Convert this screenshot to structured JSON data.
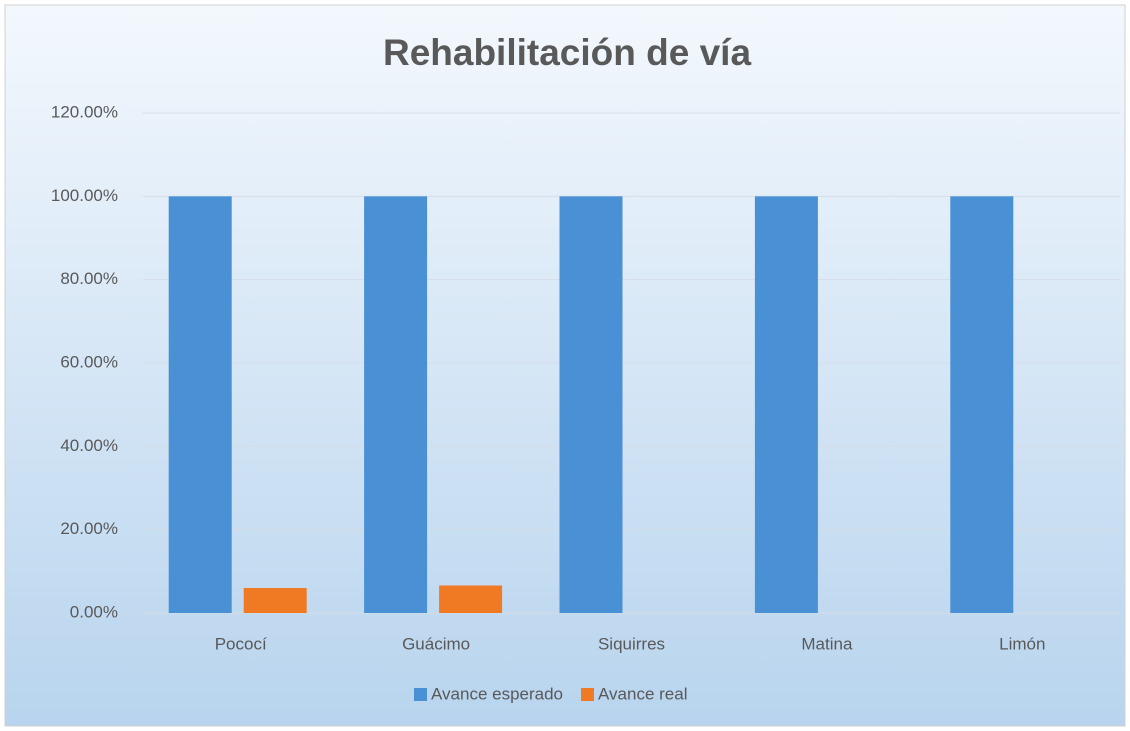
{
  "chart_data": {
    "type": "bar",
    "title": "Rehabilitación de vía",
    "categories": [
      "Pococí",
      "Guácimo",
      "Siquirres",
      "Matina",
      "Limón"
    ],
    "series": [
      {
        "name": "Avance esperado",
        "color": "#4a90d4",
        "values": [
          100,
          100,
          100,
          100,
          100
        ]
      },
      {
        "name": "Avance real",
        "color": "#f07a24",
        "values": [
          6.0,
          6.6,
          0,
          0,
          0
        ]
      }
    ],
    "ylim": [
      0,
      120
    ],
    "yticks": [
      {
        "value": 0,
        "label": "0.00%"
      },
      {
        "value": 20,
        "label": "20.00%"
      },
      {
        "value": 40,
        "label": "40.00%"
      },
      {
        "value": 60,
        "label": "60.00%"
      },
      {
        "value": 80,
        "label": "80.00%"
      },
      {
        "value": 100,
        "label": "100.00%"
      },
      {
        "value": 120,
        "label": "120.00%"
      }
    ],
    "grid": true,
    "legend": "bottom"
  }
}
